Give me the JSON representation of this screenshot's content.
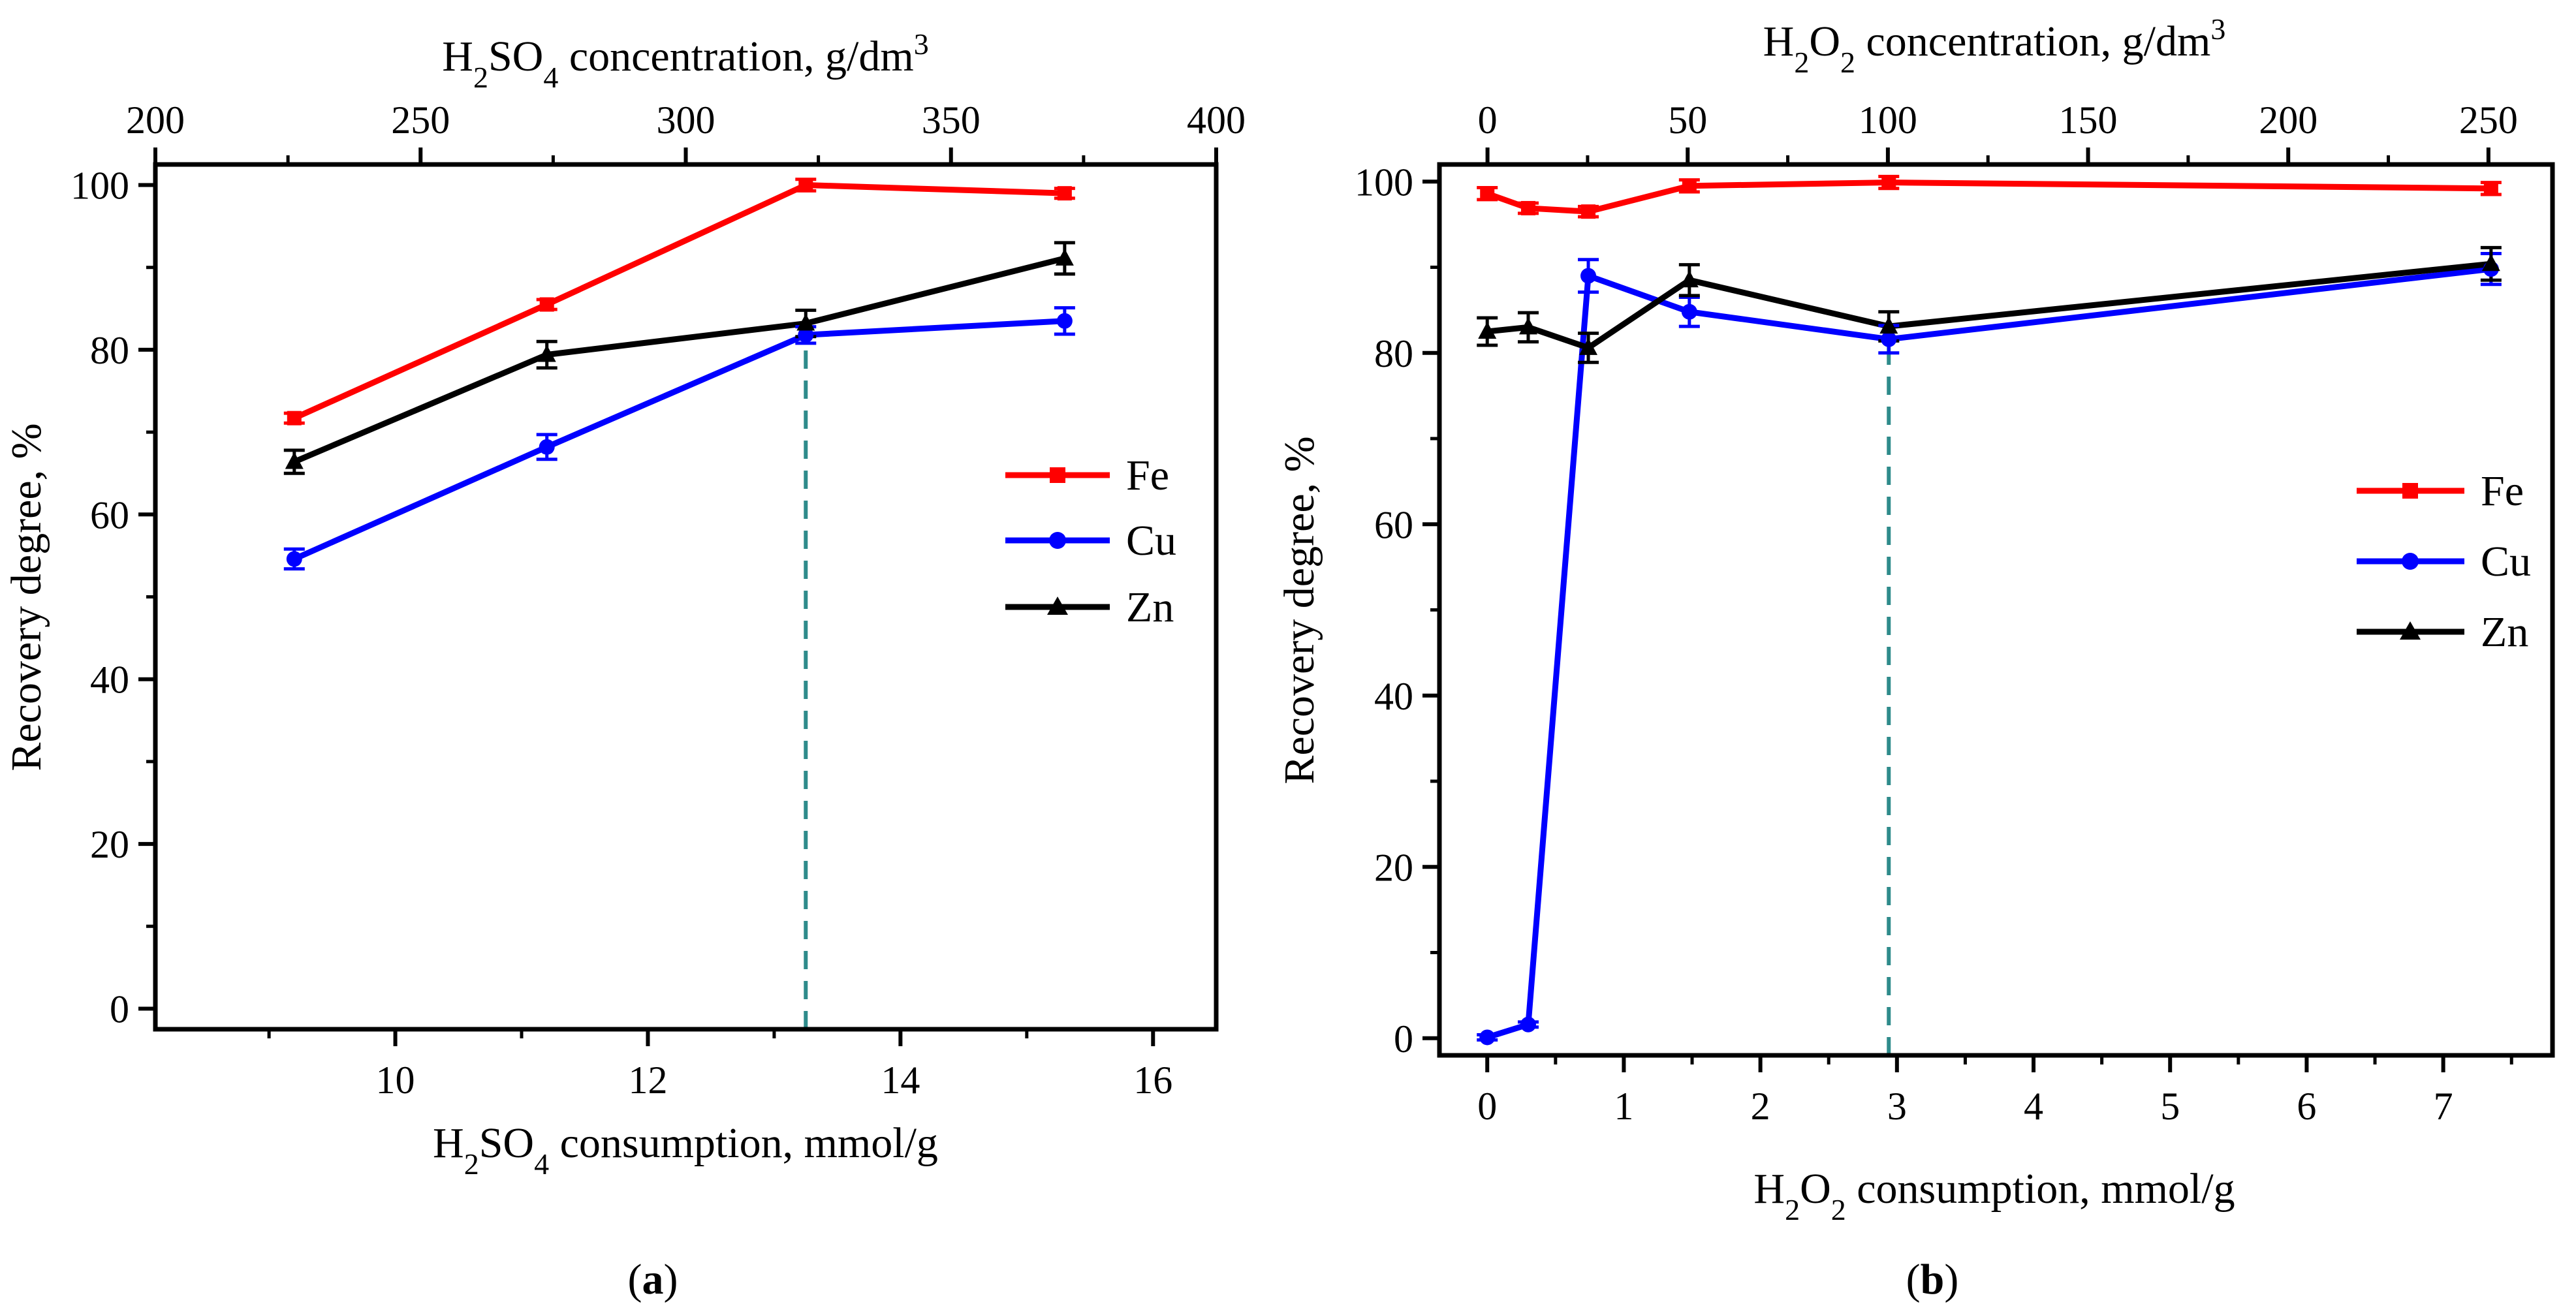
{
  "chart_data": [
    {
      "type": "line",
      "panel_label": "a",
      "xlabel_bottom": {
        "pre": "H",
        "sub1": "2",
        "mid": "SO",
        "sub2": "4",
        "post": " consumption, mmol/g"
      },
      "xlabel_top": {
        "pre": "H",
        "sub1": "2",
        "mid": "SO",
        "sub2": "4",
        "post": " concentration, g/dm",
        "sup": "3"
      },
      "ylabel": "Recovery degree, %",
      "xlim_bottom": [
        8.1,
        16.5
      ],
      "xticks_bottom": [
        10,
        12,
        14,
        16
      ],
      "xticks_bottom_labels": [
        "10",
        "12",
        "14",
        "16"
      ],
      "xlim_top": [
        200,
        400
      ],
      "xticks_top": [
        200,
        250,
        300,
        350,
        400
      ],
      "xticks_top_labels": [
        "200",
        "250",
        "300",
        "350",
        "400"
      ],
      "ylim": [
        -2.5,
        102.5
      ],
      "yticks": [
        0,
        20,
        40,
        60,
        80,
        100
      ],
      "ytick_labels": [
        "0",
        "20",
        "40",
        "60",
        "80",
        "100"
      ],
      "x": [
        9.2,
        11.2,
        13.25,
        15.3
      ],
      "series": [
        {
          "name": "Fe",
          "color": "#ff0000",
          "marker": "square",
          "values": [
            71.7,
            85.5,
            100.0,
            99.0
          ],
          "errors": [
            0.6,
            0.6,
            0.7,
            0.6
          ]
        },
        {
          "name": "Cu",
          "color": "#0000ff",
          "marker": "circle",
          "values": [
            54.6,
            68.2,
            81.8,
            83.5
          ],
          "errors": [
            1.2,
            1.5,
            1.0,
            1.6
          ]
        },
        {
          "name": "Zn",
          "color": "#000000",
          "marker": "triangle",
          "values": [
            66.4,
            79.4,
            83.2,
            91.1
          ],
          "errors": [
            1.4,
            1.6,
            1.6,
            1.9
          ]
        }
      ],
      "reference_line": {
        "x": 13.25,
        "y_to": 81.8,
        "color": "#2e8b8b"
      },
      "legend_position": "right"
    },
    {
      "type": "line",
      "panel_label": "b",
      "xlabel_bottom": {
        "pre": "H",
        "sub1": "2",
        "mid": "O",
        "sub2": "2",
        "post": " consumption, mmol/g"
      },
      "xlabel_top": {
        "pre": "H",
        "sub1": "2",
        "mid": "O",
        "sub2": "2",
        "post": " concentration, g/dm",
        "sup": "3"
      },
      "ylabel": "Recovery degree, %",
      "xlim_bottom": [
        -0.35,
        7.8
      ],
      "xticks_bottom": [
        0,
        1,
        2,
        3,
        4,
        5,
        6,
        7
      ],
      "xticks_bottom_labels": [
        "0",
        "1",
        "2",
        "3",
        "4",
        "5",
        "6",
        "7"
      ],
      "xlim_top": [
        -12,
        266
      ],
      "xticks_top": [
        0,
        50,
        100,
        150,
        200,
        250
      ],
      "xticks_top_labels": [
        "0",
        "50",
        "100",
        "150",
        "200",
        "250"
      ],
      "ylim": [
        -2,
        102
      ],
      "yticks": [
        0,
        20,
        40,
        60,
        80,
        100
      ],
      "ytick_labels": [
        "0",
        "20",
        "40",
        "60",
        "80",
        "100"
      ],
      "x": [
        0,
        0.3,
        0.74,
        1.48,
        2.94,
        7.35
      ],
      "series": [
        {
          "name": "Fe",
          "color": "#ff0000",
          "marker": "square",
          "values": [
            98.6,
            96.9,
            96.5,
            99.5,
            99.9,
            99.2
          ],
          "errors": [
            0.7,
            0.6,
            0.6,
            0.7,
            0.7,
            0.7
          ]
        },
        {
          "name": "Cu",
          "color": "#0000ff",
          "marker": "circle",
          "values": [
            0.1,
            1.6,
            89.0,
            84.8,
            81.6,
            89.8
          ],
          "errors": [
            0.3,
            0.3,
            1.9,
            1.7,
            1.6,
            1.8
          ]
        },
        {
          "name": "Zn",
          "color": "#000000",
          "marker": "triangle",
          "values": [
            82.5,
            83.0,
            80.6,
            88.5,
            83.1,
            90.4
          ],
          "errors": [
            1.6,
            1.7,
            1.7,
            1.8,
            1.7,
            1.9
          ]
        }
      ],
      "reference_line": {
        "x": 2.94,
        "y_to": 81.6,
        "color": "#2e8b8b"
      },
      "legend_position": "right"
    }
  ]
}
